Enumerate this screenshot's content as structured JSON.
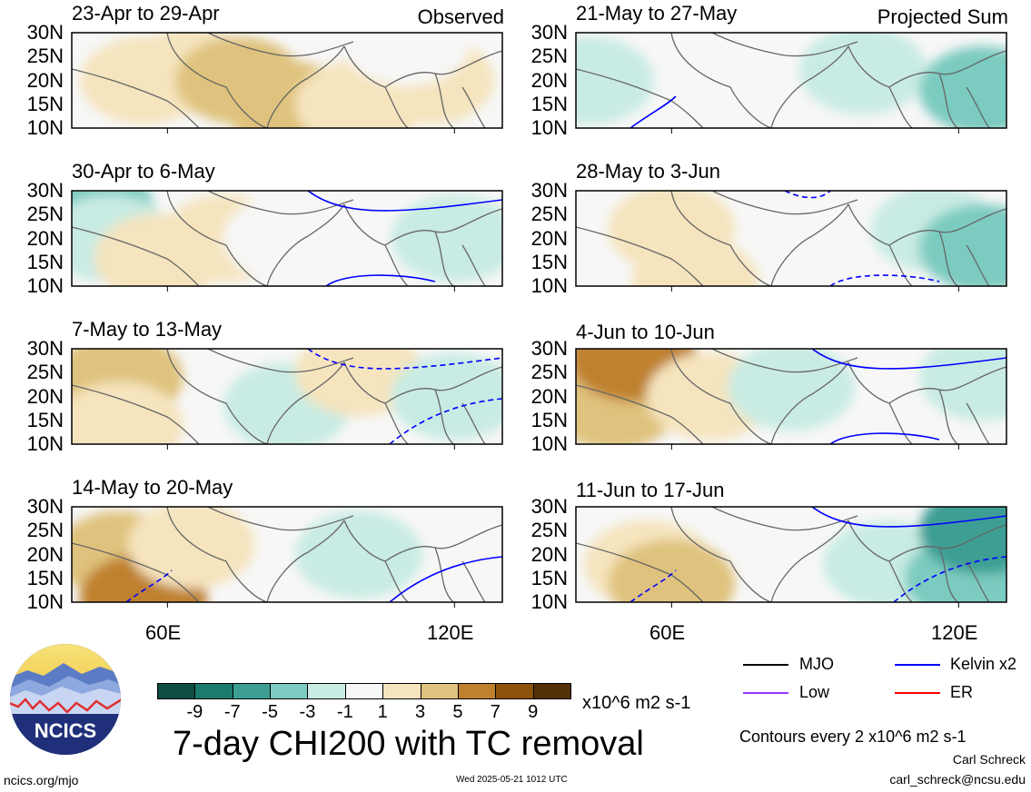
{
  "chart_data": [
    {
      "type": "heatmap",
      "title": "23-Apr to 29-Apr",
      "corner_label": "Observed",
      "yticks": [
        "30N",
        "25N",
        "20N",
        "15N",
        "10N"
      ],
      "ylim": [
        10,
        30
      ],
      "cells": [
        {
          "lon": 45,
          "lat": 20,
          "value": 0
        },
        {
          "lon": 55,
          "lat": 20,
          "value": 2
        },
        {
          "lon": 65,
          "lat": 22,
          "value": 2
        },
        {
          "lon": 75,
          "lat": 20,
          "value": 4
        },
        {
          "lon": 85,
          "lat": 15,
          "value": 4
        },
        {
          "lon": 100,
          "lat": 15,
          "value": 2
        },
        {
          "lon": 115,
          "lat": 20,
          "value": 2
        },
        {
          "lon": 110,
          "lat": 28,
          "value": 0
        }
      ],
      "contours": []
    },
    {
      "type": "heatmap",
      "title": "30-Apr to 6-May",
      "yticks": [
        "30N",
        "25N",
        "20N",
        "15N",
        "10N"
      ],
      "ylim": [
        10,
        30
      ],
      "cells": [
        {
          "lon": 44,
          "lat": 26,
          "value": -4
        },
        {
          "lon": 48,
          "lat": 20,
          "value": -2
        },
        {
          "lon": 58,
          "lat": 16,
          "value": 2
        },
        {
          "lon": 72,
          "lat": 20,
          "value": 2
        },
        {
          "lon": 85,
          "lat": 20,
          "value": 0
        },
        {
          "lon": 120,
          "lat": 20,
          "value": -2
        }
      ],
      "contours": [
        {
          "type": "Kelvin x2",
          "style": "solid"
        },
        {
          "type": "Kelvin x2",
          "style": "solid"
        }
      ]
    },
    {
      "type": "heatmap",
      "title": "7-May to 13-May",
      "yticks": [
        "30N",
        "25N",
        "20N",
        "15N",
        "10N"
      ],
      "ylim": [
        10,
        30
      ],
      "cells": [
        {
          "lon": 50,
          "lat": 24,
          "value": 4
        },
        {
          "lon": 50,
          "lat": 14,
          "value": 2
        },
        {
          "lon": 85,
          "lat": 18,
          "value": -2
        },
        {
          "lon": 100,
          "lat": 25,
          "value": 2
        },
        {
          "lon": 120,
          "lat": 20,
          "value": -2
        }
      ],
      "contours": [
        {
          "type": "Kelvin x2",
          "style": "dashed"
        },
        {
          "type": "Kelvin x2",
          "style": "dashed"
        }
      ]
    },
    {
      "type": "heatmap",
      "title": "14-May to 20-May",
      "yticks": [
        "30N",
        "25N",
        "20N",
        "15N",
        "10N"
      ],
      "ylim": [
        10,
        30
      ],
      "cells": [
        {
          "lon": 50,
          "lat": 20,
          "value": 4
        },
        {
          "lon": 55,
          "lat": 11,
          "value": 6
        },
        {
          "lon": 65,
          "lat": 22,
          "value": 2
        },
        {
          "lon": 100,
          "lat": 20,
          "value": -2
        }
      ],
      "contours": [
        {
          "type": "Kelvin x2",
          "style": "solid"
        },
        {
          "type": "Kelvin x2",
          "style": "dashed"
        }
      ]
    },
    {
      "type": "heatmap",
      "title": "21-May to 27-May",
      "corner_label": "Projected Sum",
      "yticks": [
        "30N",
        "25N",
        "20N",
        "15N",
        "10N"
      ],
      "ylim": [
        10,
        30
      ],
      "cells": [
        {
          "lon": 43,
          "lat": 20,
          "value": -2
        },
        {
          "lon": 100,
          "lat": 22,
          "value": -2
        },
        {
          "lon": 125,
          "lat": 18,
          "value": -4
        }
      ],
      "contours": [
        {
          "type": "Kelvin x2",
          "style": "solid"
        }
      ]
    },
    {
      "type": "heatmap",
      "title": "28-May to 3-Jun",
      "yticks": [
        "30N",
        "25N",
        "20N",
        "15N",
        "10N"
      ],
      "ylim": [
        10,
        30
      ],
      "cells": [
        {
          "lon": 60,
          "lat": 22,
          "value": 2
        },
        {
          "lon": 65,
          "lat": 11,
          "value": 2
        },
        {
          "lon": 115,
          "lat": 22,
          "value": -2
        },
        {
          "lon": 125,
          "lat": 18,
          "value": -4
        }
      ],
      "contours": [
        {
          "type": "Kelvin x2",
          "style": "dashed"
        },
        {
          "type": "Kelvin x2",
          "style": "dashed"
        }
      ]
    },
    {
      "type": "heatmap",
      "title": "4-Jun to 10-Jun",
      "yticks": [
        "30N",
        "25N",
        "20N",
        "15N",
        "10N"
      ],
      "ylim": [
        10,
        30
      ],
      "cells": [
        {
          "lon": 48,
          "lat": 18,
          "value": 4
        },
        {
          "lon": 52,
          "lat": 28,
          "value": 6
        },
        {
          "lon": 68,
          "lat": 20,
          "value": 2
        },
        {
          "lon": 85,
          "lat": 22,
          "value": -2
        },
        {
          "lon": 125,
          "lat": 24,
          "value": -2
        }
      ],
      "contours": [
        {
          "type": "Kelvin x2",
          "style": "solid"
        },
        {
          "type": "Kelvin x2",
          "style": "solid"
        }
      ]
    },
    {
      "type": "heatmap",
      "title": "11-Jun to 17-Jun",
      "yticks": [
        "30N",
        "25N",
        "20N",
        "15N",
        "10N"
      ],
      "ylim": [
        10,
        30
      ],
      "cells": [
        {
          "lon": 55,
          "lat": 18,
          "value": 2
        },
        {
          "lon": 60,
          "lat": 14,
          "value": 4
        },
        {
          "lon": 105,
          "lat": 18,
          "value": -2
        },
        {
          "lon": 122,
          "lat": 15,
          "value": -4
        },
        {
          "lon": 125,
          "lat": 25,
          "value": -6
        }
      ],
      "contours": [
        {
          "type": "Kelvin x2",
          "style": "solid"
        },
        {
          "type": "Kelvin x2",
          "style": "dashed"
        },
        {
          "type": "Kelvin x2",
          "style": "dashed"
        }
      ]
    }
  ],
  "axes": {
    "xticks": [
      "60E",
      "120E"
    ],
    "xlim": [
      40,
      130
    ]
  },
  "colorbar": {
    "levels": [
      -9,
      -7,
      -5,
      -3,
      -1,
      1,
      3,
      5,
      7,
      9
    ],
    "colors": [
      "#0e4d42",
      "#1a7b6e",
      "#3d9f94",
      "#7ccbc0",
      "#c8ebe3",
      "#f7f7f7",
      "#f5e4bd",
      "#dfc27d",
      "#bf812d",
      "#8c510a",
      "#543005"
    ],
    "units": "x10^6 m2 s-1"
  },
  "main_title": "7-day CHI200 with TC removal",
  "logo_text": "NCICS",
  "legend": {
    "items": [
      {
        "label": "MJO",
        "color": "#000000"
      },
      {
        "label": "Kelvin x2",
        "color": "#0000ff"
      },
      {
        "label": "Low",
        "color": "#9933ff"
      },
      {
        "label": "ER",
        "color": "#ff0000"
      }
    ],
    "contour_note": "Contours every 2 x10^6 m2 s-1"
  },
  "footer": {
    "left": "ncics.org/mjo",
    "center": "Wed 2025-05-21 1012 UTC",
    "author": "Carl Schreck",
    "email": "carl_schreck@ncsu.edu"
  }
}
